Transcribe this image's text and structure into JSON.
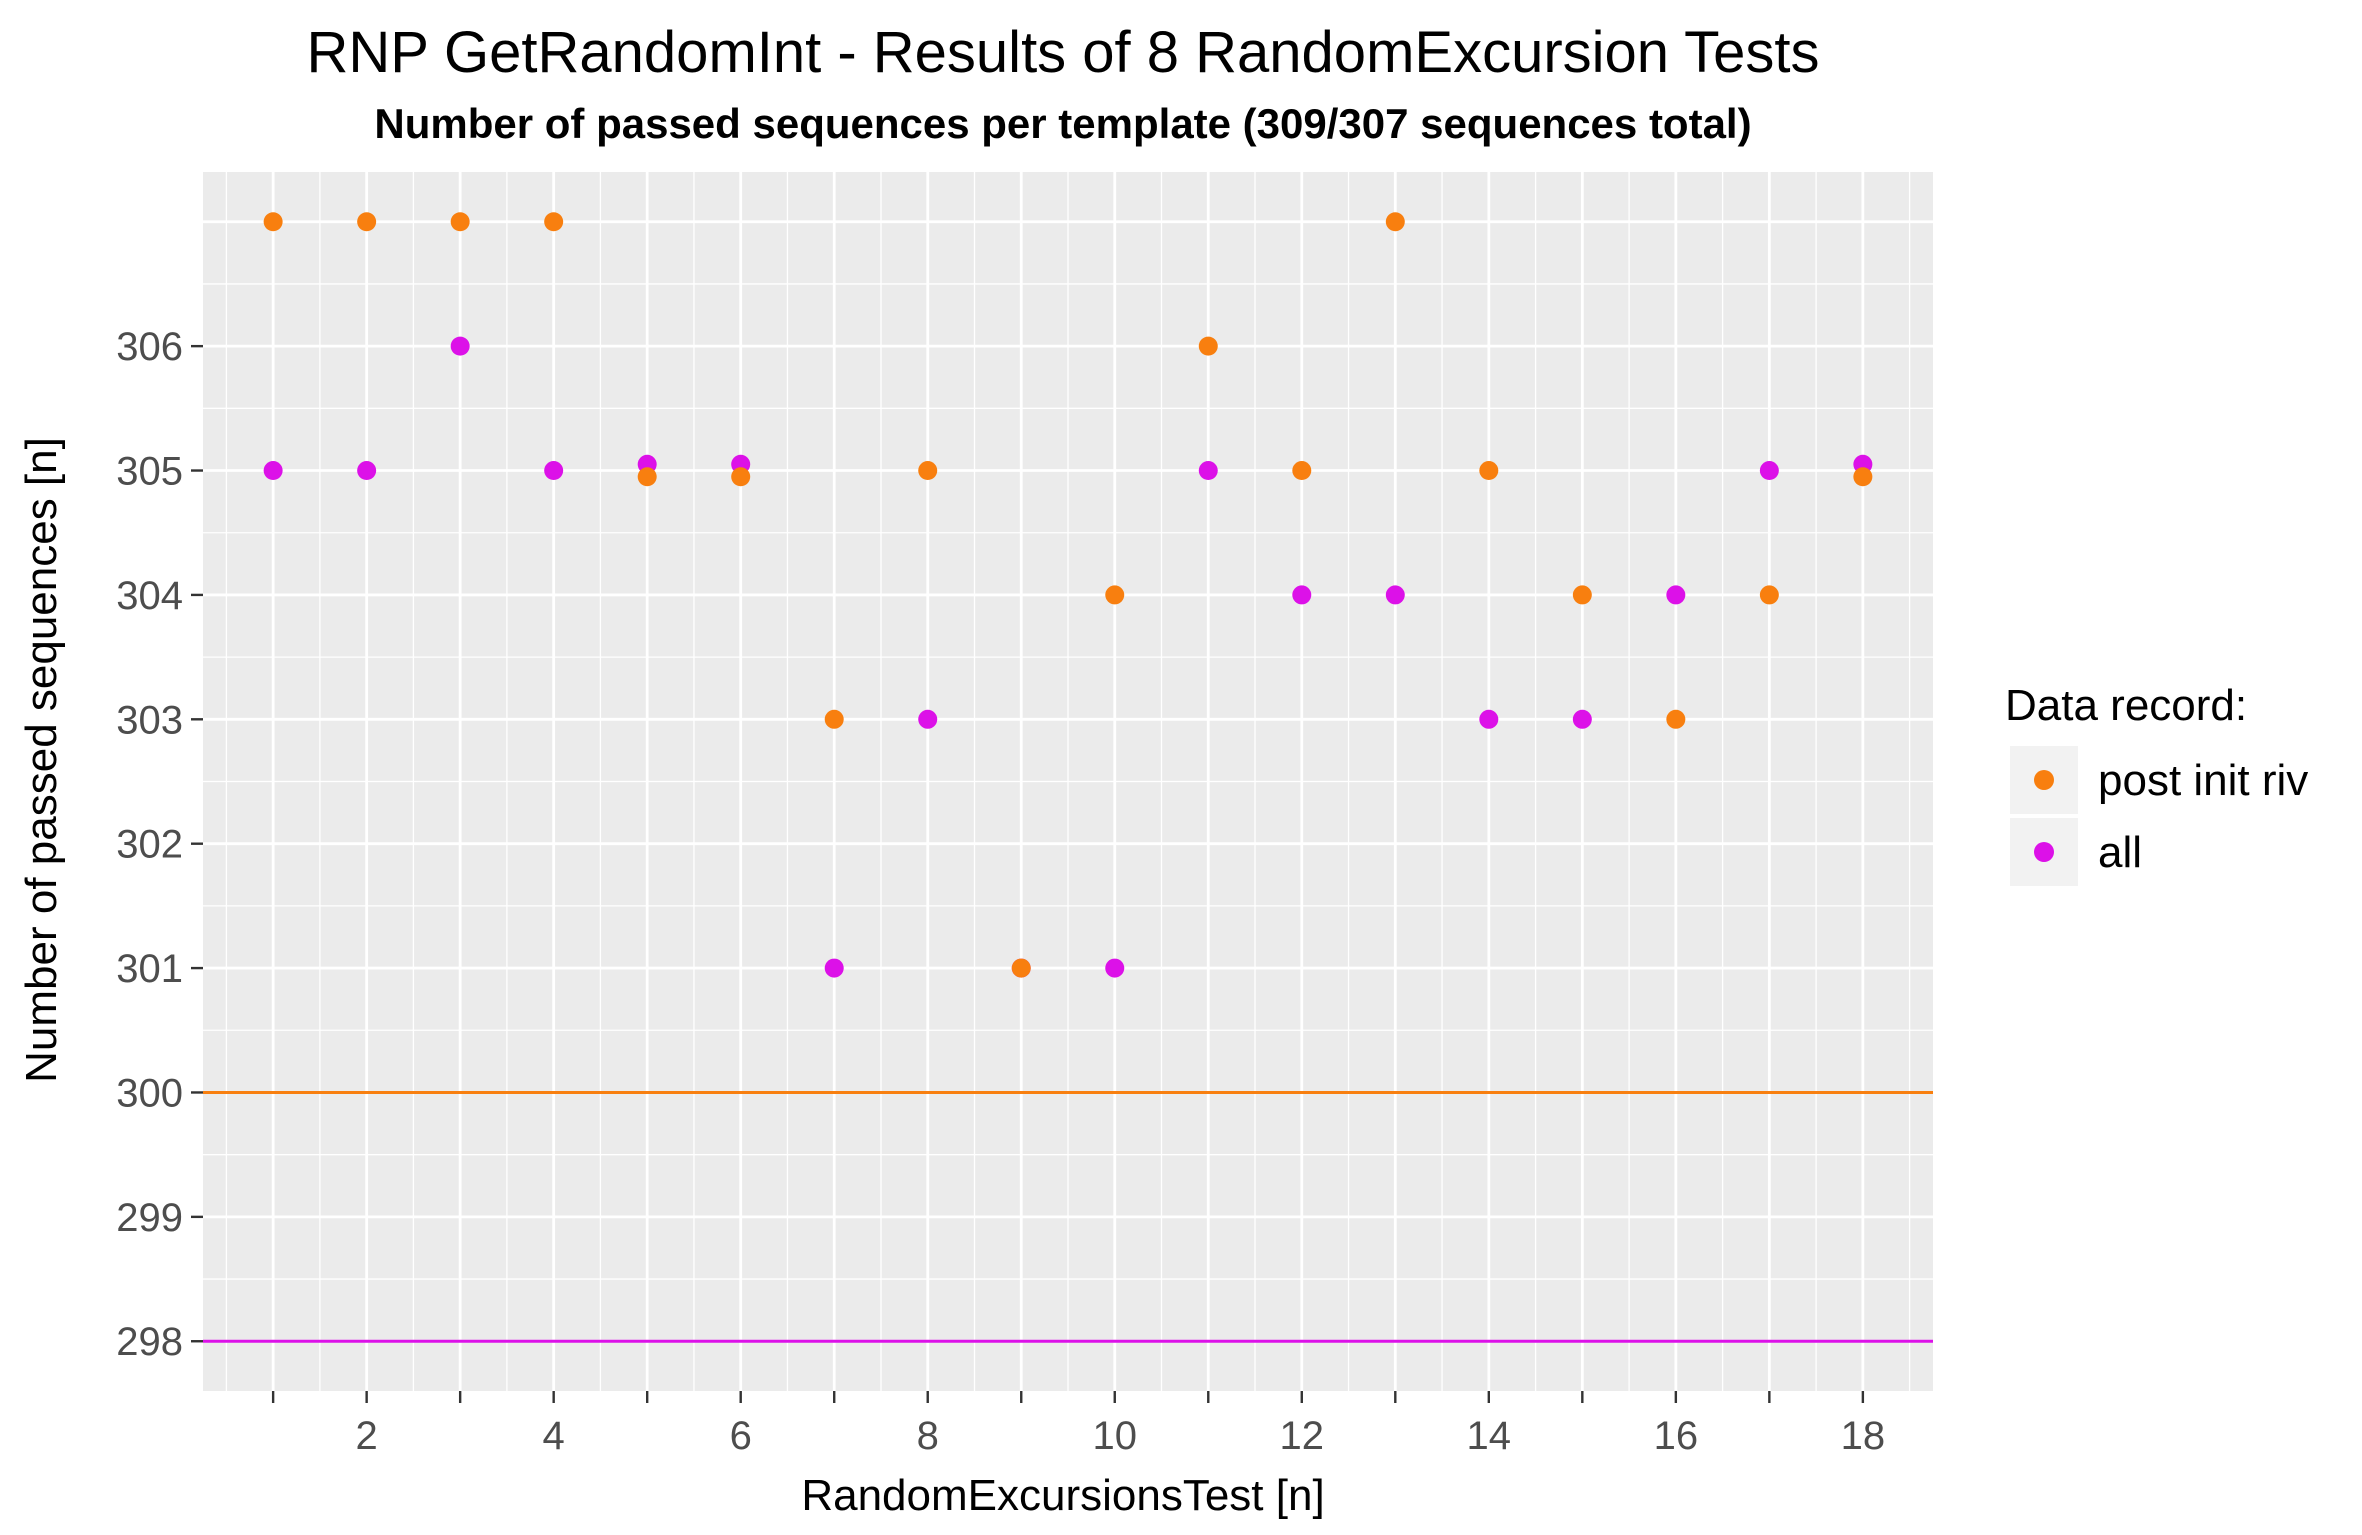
{
  "chart_data": {
    "type": "scatter",
    "title": "RNP GetRandomInt - Results of 8 RandomExcursion Tests",
    "subtitle": "Number of passed sequences per template (309/307 sequences total)",
    "xlabel": "RandomExcursionsTest [n]",
    "ylabel": "Number of passed sequences [n]",
    "xlim": [
      0.25,
      18.75
    ],
    "ylim": [
      297.6,
      307.4
    ],
    "x_ticks": [
      2,
      4,
      6,
      8,
      10,
      12,
      14,
      16,
      18
    ],
    "x_minor_ticks": [
      1,
      3,
      5,
      7,
      9,
      11,
      13,
      15,
      17
    ],
    "y_ticks": [
      298,
      299,
      300,
      301,
      302,
      303,
      304,
      305,
      306
    ],
    "grid": true,
    "background": "#ebebeb",
    "legend": {
      "title": "Data record:",
      "position": "right"
    },
    "series": [
      {
        "name": "post init riv",
        "color": "#f87f0f",
        "x": [
          1,
          2,
          3,
          4,
          5,
          6,
          7,
          8,
          9,
          10,
          11,
          12,
          13,
          14,
          15,
          16,
          17,
          18
        ],
        "y": [
          307,
          307,
          307,
          307,
          305,
          305,
          303,
          305,
          301,
          304,
          306,
          305,
          307,
          305,
          304,
          303,
          304,
          305
        ]
      },
      {
        "name": "all",
        "color": "#dc11e8",
        "x": [
          1,
          2,
          3,
          4,
          5,
          6,
          7,
          8,
          9,
          10,
          11,
          12,
          13,
          14,
          15,
          16,
          17,
          18
        ],
        "y": [
          305,
          305,
          306,
          305,
          305,
          305,
          301,
          303,
          301,
          301,
          305,
          304,
          304,
          303,
          303,
          304,
          305,
          305
        ]
      }
    ],
    "hlines": [
      {
        "y": 300,
        "color": "#f87f0f"
      },
      {
        "y": 298,
        "color": "#dc11e8"
      }
    ]
  }
}
